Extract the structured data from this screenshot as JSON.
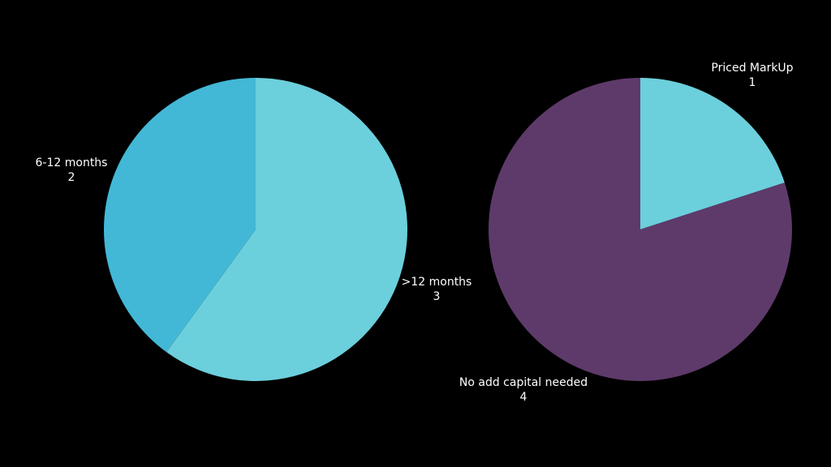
{
  "chart_data": [
    {
      "type": "pie",
      "categories": [
        ">12 months",
        "6-12 months"
      ],
      "values": [
        3,
        2
      ],
      "colors": [
        "#6ccfdc",
        "#42b8d6"
      ]
    },
    {
      "type": "pie",
      "categories": [
        "Priced MarkUp",
        "No add capital needed"
      ],
      "values": [
        1,
        4
      ],
      "colors": [
        "#6ccfdc",
        "#5e3a6a"
      ]
    }
  ]
}
